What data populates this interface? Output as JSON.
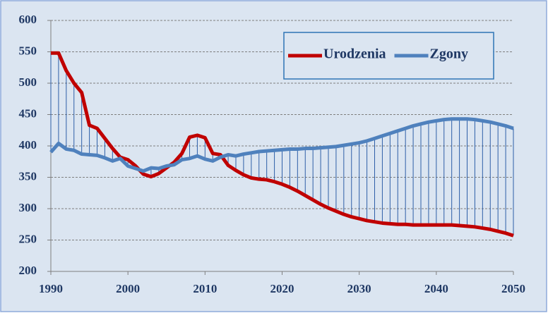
{
  "chart_data": {
    "type": "line",
    "x": [
      1990,
      1991,
      1992,
      1993,
      1994,
      1995,
      1996,
      1997,
      1998,
      1999,
      2000,
      2001,
      2002,
      2003,
      2004,
      2005,
      2006,
      2007,
      2008,
      2009,
      2010,
      2011,
      2012,
      2013,
      2014,
      2015,
      2016,
      2017,
      2018,
      2019,
      2020,
      2021,
      2022,
      2023,
      2024,
      2025,
      2026,
      2027,
      2028,
      2029,
      2030,
      2031,
      2032,
      2033,
      2034,
      2035,
      2036,
      2037,
      2038,
      2039,
      2040,
      2041,
      2042,
      2043,
      2044,
      2045,
      2046,
      2047,
      2048,
      2049,
      2050
    ],
    "series": [
      {
        "name": "Urodzenia",
        "color": "#c00000",
        "values": [
          548,
          548,
          520,
          500,
          485,
          433,
          428,
          412,
          396,
          382,
          378,
          368,
          355,
          351,
          356,
          365,
          374,
          388,
          414,
          417,
          413,
          388,
          386,
          369,
          361,
          354,
          349,
          347,
          346,
          343,
          339,
          334,
          328,
          321,
          314,
          307,
          301,
          296,
          291,
          287,
          284,
          281,
          279,
          277,
          276,
          275,
          275,
          274,
          274,
          274,
          274,
          274,
          274,
          273,
          272,
          271,
          269,
          267,
          264,
          261,
          257
        ]
      },
      {
        "name": "Zgony",
        "color": "#4f81bd",
        "values": [
          390,
          404,
          395,
          393,
          387,
          386,
          385,
          381,
          376,
          380,
          368,
          364,
          360,
          365,
          364,
          368,
          370,
          378,
          380,
          384,
          379,
          376,
          382,
          386,
          384,
          387,
          389,
          391,
          392,
          393,
          394,
          395,
          395,
          396,
          396,
          397,
          398,
          399,
          401,
          403,
          405,
          408,
          412,
          416,
          420,
          424,
          428,
          432,
          435,
          438,
          440,
          442,
          443,
          443,
          443,
          442,
          440,
          438,
          435,
          432,
          428
        ]
      }
    ],
    "xlim": [
      1990,
      2050
    ],
    "xticks": [
      1990,
      2000,
      2010,
      2020,
      2030,
      2040,
      2050
    ],
    "ylim": [
      200,
      600
    ],
    "yticks": [
      200,
      250,
      300,
      350,
      400,
      450,
      500,
      550,
      600
    ],
    "grid": true,
    "legend": "upper right",
    "drop_lines_color": "#2e5fa8"
  }
}
